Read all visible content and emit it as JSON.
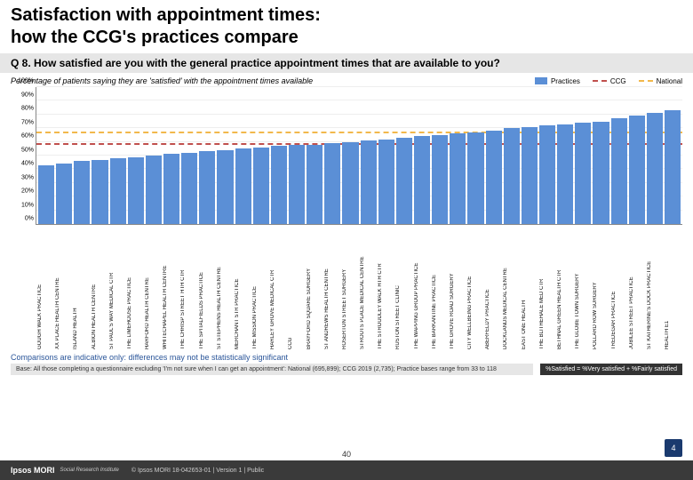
{
  "title_line1": "Satisfaction with appointment times:",
  "title_line2": "how the CCG's practices compare",
  "question": "Q 8. How satisfied are you with the general practice appointment times that are available to you?",
  "chart_desc": "Percentage of patients saying they are 'satisfied' with the appointment times available",
  "legend": {
    "practices": "Practices",
    "ccg": "CCG",
    "national": "National"
  },
  "colors": {
    "bar": "#5b8fd6",
    "ccg_line": "#c0504d",
    "national_line": "#f2b84b",
    "bar_fill": "#5b8fd6"
  },
  "y_axis": {
    "min": 0,
    "max": 100,
    "step": 10,
    "ticks": [
      "0%",
      "10%",
      "20%",
      "30%",
      "40%",
      "50%",
      "60%",
      "70%",
      "80%",
      "90%",
      "100%"
    ]
  },
  "reference_lines": {
    "ccg": 58,
    "national": 66
  },
  "practices": [
    {
      "name": "GOUGH WALK PRACTICE",
      "val": 43
    },
    {
      "name": "XX PLACE HEALTH CENTRE",
      "val": 44
    },
    {
      "name": "ISLAND HEALTH",
      "val": 46
    },
    {
      "name": "ALBION HEALTH CENTRE",
      "val": 47
    },
    {
      "name": "ST PAUL'S WAY MEDICAL CTR",
      "val": 48
    },
    {
      "name": "THE LIMEHOUSE PRACTICE",
      "val": 49
    },
    {
      "name": "HARFORD HEALTH CENTRE",
      "val": 50
    },
    {
      "name": "WHITECHAPEL HEALTH CENTRE",
      "val": 51
    },
    {
      "name": "THE CHRISP STREET HTH CTR",
      "val": 52
    },
    {
      "name": "THE SPITALFIELDS PRACTICE",
      "val": 53
    },
    {
      "name": "ST STEPHENS HEALTH CENTRE",
      "val": 54
    },
    {
      "name": "MERCHANT STR PRACTICE",
      "val": 55
    },
    {
      "name": "THE MISSION PRACTICE",
      "val": 56
    },
    {
      "name": "HARLEY GROVE MEDICAL CTR",
      "val": 57
    },
    {
      "name": "CCG",
      "val": 58
    },
    {
      "name": "BRAYFORD SQUARE SURGERY",
      "val": 58
    },
    {
      "name": "ST ANDREWS HEALTH CENTRE",
      "val": 59
    },
    {
      "name": "ROSERTON STREET SURGERY",
      "val": 60
    },
    {
      "name": "STROUTS PLACE MEDICAL CENTRE",
      "val": 61
    },
    {
      "name": "THE STROUDLEY WALK HTH CTR",
      "val": 62
    },
    {
      "name": "RUSTON STREET CLINIC",
      "val": 63
    },
    {
      "name": "THE WAPPING GROUP PRACTICE",
      "val": 64
    },
    {
      "name": "THE BARKANTINE PRACTICE",
      "val": 65
    },
    {
      "name": "THE GROVE ROAD SURGERY",
      "val": 66
    },
    {
      "name": "CITY WELLBEING PRACTICE",
      "val": 67
    },
    {
      "name": "ABERFELDY PRACTICE",
      "val": 68
    },
    {
      "name": "DOCKLANDS MEDICAL CENTRE",
      "val": 70
    },
    {
      "name": "EAST ONE HEALTH",
      "val": 71
    },
    {
      "name": "THE BLITHEHALE MED CTR",
      "val": 72
    },
    {
      "name": "BETHNAL GREEN HEALTH CTR",
      "val": 73
    },
    {
      "name": "THE GLOBE TOWN SURGERY",
      "val": 74
    },
    {
      "name": "POLLARD ROW SURGERY",
      "val": 75
    },
    {
      "name": "TREDEGAR PRACTICE",
      "val": 77
    },
    {
      "name": "JUBILEE STREET PRACTICE",
      "val": 79
    },
    {
      "name": "ST KATHERINE'S DOCK PRACTICE",
      "val": 81
    },
    {
      "name": "HEALTH E1",
      "val": 83
    }
  ],
  "comparison_note": "Comparisons are indicative only: differences may not be statistically significant",
  "base_note": "Base: All those completing a questionnaire excluding 'I'm not sure when I can get an appointment': National (695,899); CCG 2019 (2,735); Practice bases range from 33 to 118",
  "sat_note": "%Satisfied = %Very satisfied + %Fairly satisfied",
  "page_num": "40",
  "ipsos": "Ipsos MORI",
  "sri": "Social Research Institute",
  "copyright": "© Ipsos MORI    18-042653-01 | Version 1 | Public",
  "logo_num": "4"
}
